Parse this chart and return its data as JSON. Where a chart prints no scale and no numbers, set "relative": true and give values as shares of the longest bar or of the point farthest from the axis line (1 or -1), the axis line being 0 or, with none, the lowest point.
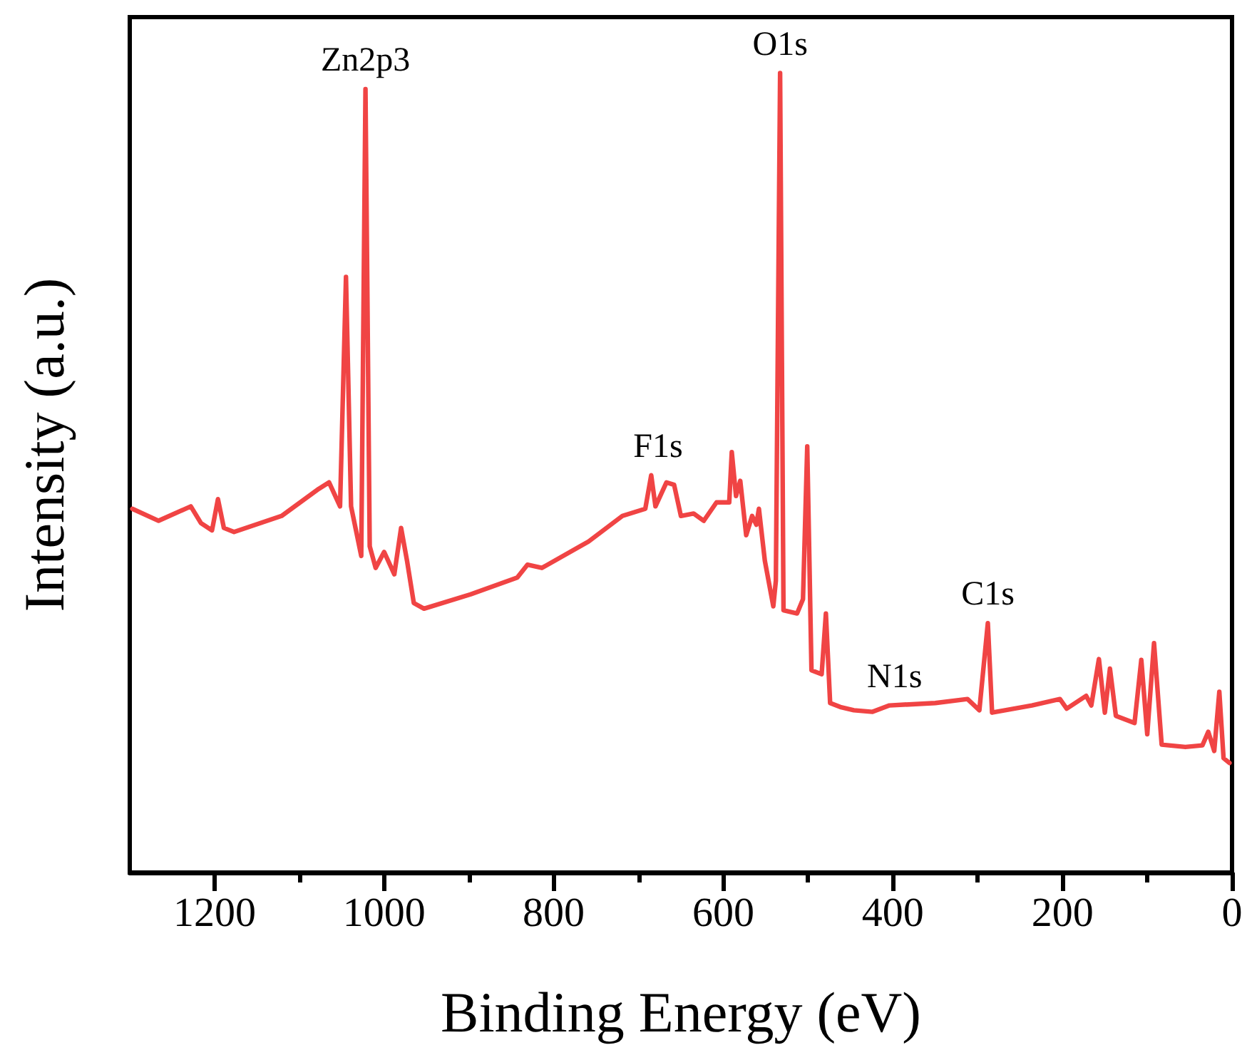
{
  "chart_data": {
    "type": "line",
    "relative": true,
    "xlabel": "Binding Energy (eV)",
    "ylabel": "Intensity (a.u.)",
    "xlim": [
      1300,
      0
    ],
    "xticks": [
      1200,
      {
        "value": 1100,
        "label": null
      },
      1000,
      {
        "value": 900,
        "label": null
      },
      800,
      {
        "value": 700,
        "label": null
      },
      600,
      {
        "value": 500,
        "label": null
      },
      400,
      {
        "value": 300,
        "label": null
      },
      200,
      {
        "value": 100,
        "label": null
      },
      0
    ],
    "x": [
      1297,
      1266,
      1228,
      1216,
      1203,
      1196,
      1189,
      1177,
      1121,
      1077,
      1065,
      1052,
      1045,
      1039,
      1027,
      1022,
      1017,
      1010,
      1000,
      988,
      980,
      973,
      965,
      953,
      898,
      843,
      831,
      814,
      759,
      719,
      692,
      685,
      680,
      667,
      658,
      650,
      635,
      623,
      608,
      593,
      590,
      585,
      580,
      573,
      566,
      561,
      558,
      551,
      541,
      538,
      533,
      529,
      513,
      506,
      501,
      496,
      484,
      479,
      474,
      462,
      446,
      424,
      404,
      350,
      312,
      298,
      288,
      283,
      236,
      203,
      195,
      172,
      166,
      157,
      150,
      144,
      137,
      115,
      107,
      100,
      92,
      83,
      55,
      35,
      28,
      21,
      15,
      10,
      3
    ],
    "series": [
      {
        "color": "#f04444",
        "values": [
          0.455,
          0.44,
          0.458,
          0.437,
          0.428,
          0.467,
          0.431,
          0.426,
          0.446,
          0.48,
          0.488,
          0.458,
          0.745,
          0.458,
          0.396,
          0.98,
          0.408,
          0.381,
          0.401,
          0.373,
          0.431,
          0.39,
          0.337,
          0.33,
          0.348,
          0.369,
          0.385,
          0.381,
          0.414,
          0.446,
          0.455,
          0.497,
          0.458,
          0.488,
          0.485,
          0.446,
          0.449,
          0.44,
          0.463,
          0.463,
          0.526,
          0.471,
          0.49,
          0.422,
          0.446,
          0.435,
          0.455,
          0.39,
          0.333,
          0.365,
          1,
          0.328,
          0.324,
          0.342,
          0.533,
          0.253,
          0.248,
          0.324,
          0.212,
          0.207,
          0.203,
          0.201,
          0.209,
          0.212,
          0.217,
          0.203,
          0.312,
          0.2,
          0.209,
          0.217,
          0.205,
          0.221,
          0.209,
          0.267,
          0.2,
          0.255,
          0.196,
          0.187,
          0.266,
          0.173,
          0.287,
          0.16,
          0.157,
          0.159,
          0.176,
          0.152,
          0.226,
          0.143,
          0.137
        ]
      }
    ],
    "annotations": [
      {
        "text": "Zn2p3",
        "x": 1022,
        "y": 0.98
      },
      {
        "text": "O1s",
        "x": 533,
        "y": 1
      },
      {
        "text": "F1s",
        "x": 677,
        "y": 0.497
      },
      {
        "text": "N1s",
        "x": 398,
        "y": 0.209
      },
      {
        "text": "C1s",
        "x": 288,
        "y": 0.312
      }
    ]
  }
}
